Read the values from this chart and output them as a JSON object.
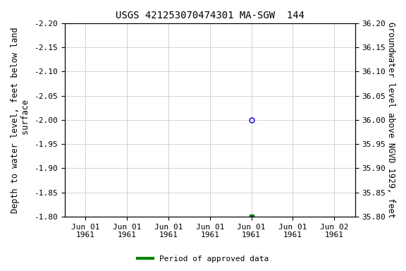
{
  "title": "USGS 421253070474301 MA-SGW  144",
  "left_ylabel": "Depth to water level, feet below land\n surface",
  "right_ylabel": "Groundwater level above NGVD 1929, feet",
  "ylim_left": [
    -2.2,
    -1.8
  ],
  "ylim_right": [
    36.2,
    35.8
  ],
  "yticks_left": [
    -2.2,
    -2.15,
    -2.1,
    -2.05,
    -2.0,
    -1.95,
    -1.9,
    -1.85,
    -1.8
  ],
  "yticks_right": [
    36.2,
    36.15,
    36.1,
    36.05,
    36.0,
    35.95,
    35.9,
    35.85,
    35.8
  ],
  "data_point_x": 4,
  "data_point_y": -2.0,
  "green_point_x": 4,
  "green_point_y": -1.8,
  "x_tick_labels": [
    "Jun 01\n1961",
    "Jun 01\n1961",
    "Jun 01\n1961",
    "Jun 01\n1961",
    "Jun 01\n1961",
    "Jun 01\n1961",
    "Jun 02\n1961"
  ],
  "x_tick_positions": [
    0,
    1,
    2,
    3,
    4,
    5,
    6
  ],
  "xlim": [
    -0.5,
    6.5
  ],
  "legend_label": "Period of approved data",
  "legend_color": "#008000",
  "circle_color": "#0000cd",
  "bg_color": "#ffffff",
  "grid_color": "#c0c0c0",
  "title_fontsize": 10,
  "label_fontsize": 8.5,
  "tick_fontsize": 8
}
